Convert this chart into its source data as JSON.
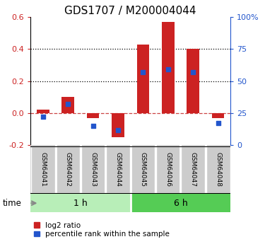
{
  "title": "GDS1707 / M200004044",
  "samples": [
    "GSM64041",
    "GSM64042",
    "GSM64043",
    "GSM64044",
    "GSM64045",
    "GSM64046",
    "GSM64047",
    "GSM64048"
  ],
  "log2_ratio": [
    0.02,
    0.1,
    -0.03,
    -0.15,
    0.43,
    0.57,
    0.4,
    -0.03
  ],
  "percentile_rank": [
    22,
    32,
    15,
    12,
    57,
    59,
    57,
    17
  ],
  "groups": [
    {
      "label": "1 h",
      "color": "#b8eeb8",
      "dark_color": "#55cc55",
      "start": 0,
      "end": 4
    },
    {
      "label": "6 h",
      "color": "#55cc55",
      "dark_color": "#33aa33",
      "start": 4,
      "end": 8
    }
  ],
  "ylim_left": [
    -0.2,
    0.6
  ],
  "ylim_right": [
    0,
    100
  ],
  "yticks_left": [
    -0.2,
    0.0,
    0.2,
    0.4,
    0.6
  ],
  "yticks_right": [
    0,
    25,
    50,
    75,
    100
  ],
  "bar_color": "#cc2222",
  "scatter_color": "#2255cc",
  "zero_line_color": "#cc4444",
  "grid_color": "#111111",
  "label_bg": "#cccccc",
  "legend_items": [
    "log2 ratio",
    "percentile rank within the sample"
  ]
}
